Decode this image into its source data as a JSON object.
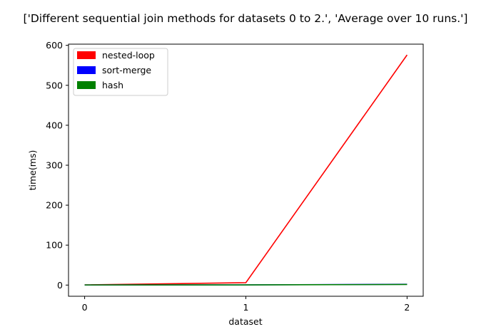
{
  "chart_data": {
    "type": "line",
    "title": "['Different sequential join methods for datasets 0 to 2.', 'Average over 10 runs.']",
    "xlabel": "dataset",
    "ylabel": "time(ms)",
    "x": [
      0,
      1,
      2
    ],
    "xticks": [
      "0",
      "1",
      "2"
    ],
    "yticks": [
      "0",
      "100",
      "200",
      "300",
      "400",
      "500",
      "600"
    ],
    "xlim": [
      -0.1,
      2.1
    ],
    "ylim": [
      -28,
      603
    ],
    "grid": false,
    "legend_position": "top-left",
    "series": [
      {
        "name": "nested-loop",
        "color": "#ff0000",
        "values": [
          0.5,
          6,
          576
        ]
      },
      {
        "name": "sort-merge",
        "color": "#0000ff",
        "values": [
          0.3,
          0.5,
          2
        ]
      },
      {
        "name": "hash",
        "color": "#008000",
        "values": [
          0.3,
          0.4,
          1.5
        ]
      }
    ]
  }
}
